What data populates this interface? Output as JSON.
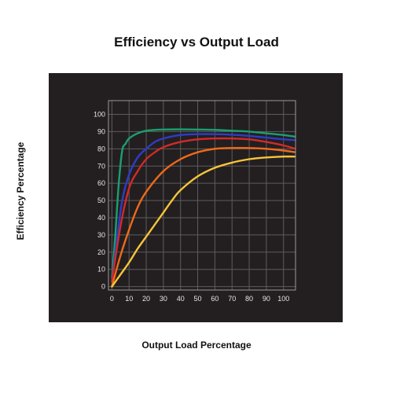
{
  "chart_data": {
    "type": "line",
    "title": "Efficiency vs Output Load",
    "xlabel": "Output Load Percentage",
    "ylabel": "Efficiency Percentage",
    "xlim": [
      -2,
      107
    ],
    "ylim": [
      -2,
      108
    ],
    "x_ticks": [
      0,
      10,
      20,
      30,
      40,
      50,
      60,
      70,
      80,
      90,
      100
    ],
    "y_ticks": [
      0,
      10,
      20,
      30,
      40,
      50,
      60,
      70,
      80,
      90,
      100
    ],
    "grid": true,
    "legend": "none",
    "series": [
      {
        "color": "#1aa070",
        "x": [
          0,
          2,
          4,
          6,
          8,
          10,
          15,
          20,
          25,
          30,
          40,
          50,
          60,
          70,
          80,
          90,
          100,
          107
        ],
        "values": [
          5,
          30,
          60,
          79,
          83,
          86,
          89,
          90.5,
          91,
          91.2,
          91.3,
          91.2,
          91,
          90.5,
          90,
          89,
          88,
          87
        ]
      },
      {
        "color": "#2e3cc8",
        "x": [
          0,
          3,
          6,
          10,
          15,
          20,
          25,
          30,
          40,
          50,
          60,
          70,
          80,
          90,
          100,
          107
        ],
        "values": [
          3,
          28,
          50,
          65,
          75,
          80,
          84,
          86,
          88,
          88.5,
          88.5,
          88.2,
          87.5,
          86.5,
          85.5,
          85
        ]
      },
      {
        "color": "#d22a2a",
        "x": [
          0,
          5,
          10,
          15,
          20,
          25,
          30,
          40,
          50,
          60,
          70,
          80,
          90,
          100,
          107
        ],
        "values": [
          3,
          35,
          57,
          67,
          74,
          78,
          81,
          84,
          85.5,
          86,
          86,
          85.5,
          84,
          82,
          80
        ]
      },
      {
        "color": "#ee6a1a",
        "x": [
          0,
          5,
          10,
          15,
          20,
          30,
          40,
          50,
          60,
          70,
          80,
          90,
          100,
          107
        ],
        "values": [
          0,
          18,
          33,
          46,
          55,
          67,
          74,
          78,
          80,
          80.5,
          80.5,
          80,
          79,
          78
        ]
      },
      {
        "color": "#f7c43b",
        "x": [
          0,
          5,
          10,
          15,
          20,
          25,
          30,
          35,
          40,
          50,
          60,
          70,
          80,
          90,
          100,
          107
        ],
        "values": [
          0,
          7,
          14,
          22,
          29,
          36,
          43,
          50,
          56,
          64,
          69,
          72,
          74,
          75,
          75.5,
          75.5
        ]
      }
    ]
  }
}
